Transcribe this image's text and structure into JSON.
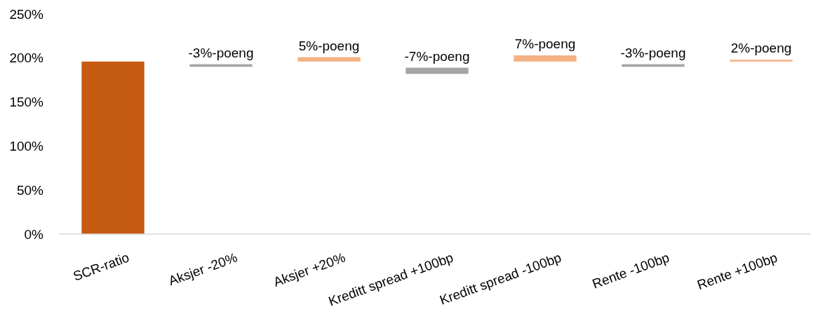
{
  "chart_data": {
    "type": "bar",
    "categories": [
      "SCR-ratio",
      "Aksjer -20%",
      "Aksjer +20%",
      "Kreditt spread +100bp",
      "Kreditt spread -100bp",
      "Rente -100bp",
      "Rente +100bp"
    ],
    "values": [
      196,
      -3,
      5,
      -7,
      7,
      -3,
      2
    ],
    "base": [
      0,
      193,
      196,
      189,
      196,
      193,
      196
    ],
    "colors": [
      "#c55a11",
      "#a5a5a5",
      "#f4b183",
      "#a5a5a5",
      "#f4b183",
      "#a5a5a5",
      "#f4b183"
    ],
    "value_labels": [
      null,
      "-3%-poeng",
      "5%-poeng",
      "-7%-poeng",
      "7%-poeng",
      "-3%-poeng",
      "2%-poeng"
    ],
    "ylim": [
      0,
      250
    ],
    "yticks": [
      {
        "value": 0,
        "label": "0%"
      },
      {
        "value": 50,
        "label": "50%"
      },
      {
        "value": 100,
        "label": "100%"
      },
      {
        "value": 150,
        "label": "150%"
      },
      {
        "value": 200,
        "label": "200%"
      },
      {
        "value": 250,
        "label": "250%"
      }
    ],
    "grid": false
  }
}
